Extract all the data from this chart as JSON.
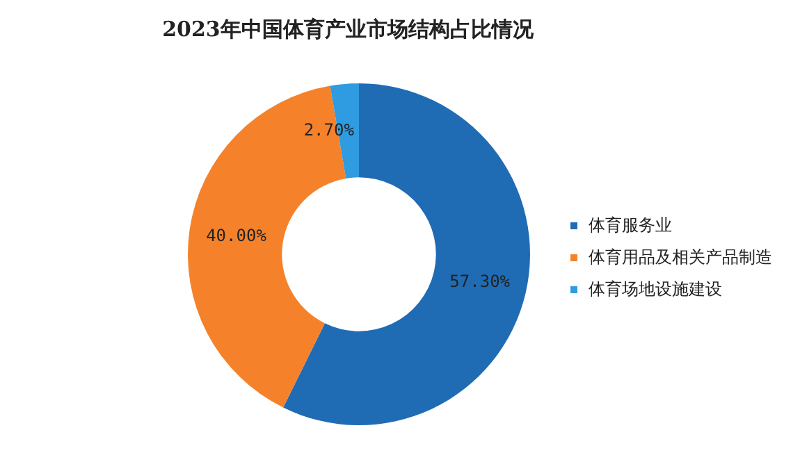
{
  "chart_data": {
    "type": "donut",
    "title": "2023年中国体育产业市场结构占比情况",
    "categories": [
      "体育服务业",
      "体育用品及相关产品制造",
      "体育场地设施建设"
    ],
    "values": [
      57.3,
      40.0,
      2.7
    ],
    "colors": [
      "#1f6cb5",
      "#f5822a",
      "#2f9be0"
    ],
    "value_labels": [
      "57.30%",
      "40.00%",
      "2.70%"
    ],
    "legend": "right"
  }
}
